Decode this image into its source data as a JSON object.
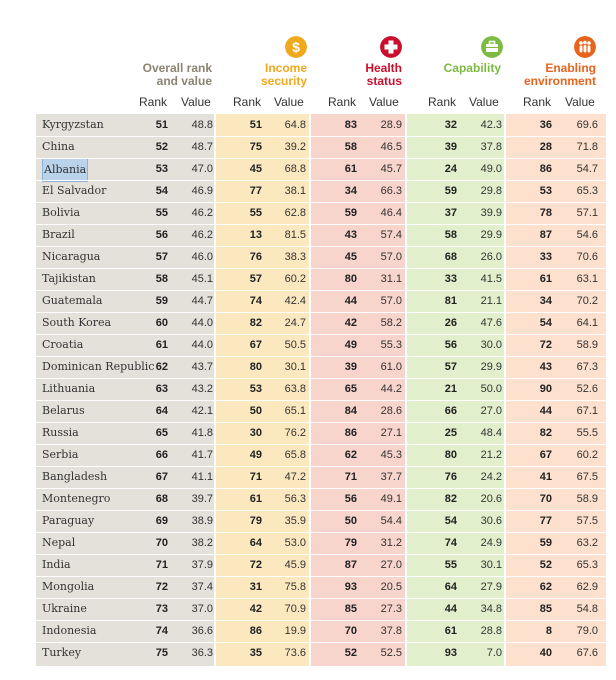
{
  "headers": {
    "overall": {
      "line1": "Overall rank",
      "line2": "and value"
    },
    "income": {
      "line1": "Income",
      "line2": "security"
    },
    "health": {
      "line1": "Health",
      "line2": "status"
    },
    "capability": {
      "line1": "Capability"
    },
    "enabling": {
      "line1": "Enabling",
      "line2": "environment"
    },
    "rank_label": "Rank",
    "value_label": "Value"
  },
  "colors": {
    "overall_band": "#e4e1da",
    "income_band": "#fce8bf",
    "health_band": "#f7d4cc",
    "capability_band": "#e2efcc",
    "enabling_band": "#fde0cd",
    "income_accent": "#f0a81c",
    "health_accent": "#c8102e",
    "capability_accent": "#7dbb42",
    "enabling_accent": "#e8641e",
    "overall_accent": "#8c8373"
  },
  "icons": {
    "income": "dollar-coin-icon",
    "health": "medical-cross-icon",
    "capability": "briefcase-icon",
    "enabling": "people-group-icon"
  },
  "rows": [
    {
      "country": "Kyrgyzstan",
      "overall_rank": "51",
      "overall_value": "48.8",
      "income_rank": "51",
      "income_value": "64.8",
      "health_rank": "83",
      "health_value": "28.9",
      "cap_rank": "32",
      "cap_value": "42.3",
      "env_rank": "36",
      "env_value": "69.6"
    },
    {
      "country": "China",
      "overall_rank": "52",
      "overall_value": "48.7",
      "income_rank": "75",
      "income_value": "39.2",
      "health_rank": "58",
      "health_value": "46.5",
      "cap_rank": "39",
      "cap_value": "37.8",
      "env_rank": "28",
      "env_value": "71.8"
    },
    {
      "country": "Albania",
      "overall_rank": "53",
      "overall_value": "47.0",
      "income_rank": "45",
      "income_value": "68.8",
      "health_rank": "61",
      "health_value": "45.7",
      "cap_rank": "24",
      "cap_value": "49.0",
      "env_rank": "86",
      "env_value": "54.7",
      "highlighted": true
    },
    {
      "country": "El Salvador",
      "overall_rank": "54",
      "overall_value": "46.9",
      "income_rank": "77",
      "income_value": "38.1",
      "health_rank": "34",
      "health_value": "66.3",
      "cap_rank": "59",
      "cap_value": "29.8",
      "env_rank": "53",
      "env_value": "65.3"
    },
    {
      "country": "Bolivia",
      "overall_rank": "55",
      "overall_value": "46.2",
      "income_rank": "55",
      "income_value": "62.8",
      "health_rank": "59",
      "health_value": "46.4",
      "cap_rank": "37",
      "cap_value": "39.9",
      "env_rank": "78",
      "env_value": "57.1"
    },
    {
      "country": "Brazil",
      "overall_rank": "56",
      "overall_value": "46.2",
      "income_rank": "13",
      "income_value": "81.5",
      "health_rank": "43",
      "health_value": "57.4",
      "cap_rank": "58",
      "cap_value": "29.9",
      "env_rank": "87",
      "env_value": "54.6"
    },
    {
      "country": "Nicaragua",
      "overall_rank": "57",
      "overall_value": "46.0",
      "income_rank": "76",
      "income_value": "38.3",
      "health_rank": "45",
      "health_value": "57.0",
      "cap_rank": "68",
      "cap_value": "26.0",
      "env_rank": "33",
      "env_value": "70.6"
    },
    {
      "country": "Tajikistan",
      "overall_rank": "58",
      "overall_value": "45.1",
      "income_rank": "57",
      "income_value": "60.2",
      "health_rank": "80",
      "health_value": "31.1",
      "cap_rank": "33",
      "cap_value": "41.5",
      "env_rank": "61",
      "env_value": "63.1"
    },
    {
      "country": "Guatemala",
      "overall_rank": "59",
      "overall_value": "44.7",
      "income_rank": "74",
      "income_value": "42.4",
      "health_rank": "44",
      "health_value": "57.0",
      "cap_rank": "81",
      "cap_value": "21.1",
      "env_rank": "34",
      "env_value": "70.2"
    },
    {
      "country": "South Korea",
      "overall_rank": "60",
      "overall_value": "44.0",
      "income_rank": "82",
      "income_value": "24.7",
      "health_rank": "42",
      "health_value": "58.2",
      "cap_rank": "26",
      "cap_value": "47.6",
      "env_rank": "54",
      "env_value": "64.1"
    },
    {
      "country": "Croatia",
      "overall_rank": "61",
      "overall_value": "44.0",
      "income_rank": "67",
      "income_value": "50.5",
      "health_rank": "49",
      "health_value": "55.3",
      "cap_rank": "56",
      "cap_value": "30.0",
      "env_rank": "72",
      "env_value": "58.9"
    },
    {
      "country": "Dominican Republic",
      "overall_rank": "62",
      "overall_value": "43.7",
      "income_rank": "80",
      "income_value": "30.1",
      "health_rank": "39",
      "health_value": "61.0",
      "cap_rank": "57",
      "cap_value": "29.9",
      "env_rank": "43",
      "env_value": "67.3"
    },
    {
      "country": "Lithuania",
      "overall_rank": "63",
      "overall_value": "43.2",
      "income_rank": "53",
      "income_value": "63.8",
      "health_rank": "65",
      "health_value": "44.2",
      "cap_rank": "21",
      "cap_value": "50.0",
      "env_rank": "90",
      "env_value": "52.6"
    },
    {
      "country": "Belarus",
      "overall_rank": "64",
      "overall_value": "42.1",
      "income_rank": "50",
      "income_value": "65.1",
      "health_rank": "84",
      "health_value": "28.6",
      "cap_rank": "66",
      "cap_value": "27.0",
      "env_rank": "44",
      "env_value": "67.1"
    },
    {
      "country": "Russia",
      "overall_rank": "65",
      "overall_value": "41.8",
      "income_rank": "30",
      "income_value": "76.2",
      "health_rank": "86",
      "health_value": "27.1",
      "cap_rank": "25",
      "cap_value": "48.4",
      "env_rank": "82",
      "env_value": "55.5"
    },
    {
      "country": "Serbia",
      "overall_rank": "66",
      "overall_value": "41.7",
      "income_rank": "49",
      "income_value": "65.8",
      "health_rank": "62",
      "health_value": "45.3",
      "cap_rank": "80",
      "cap_value": "21.2",
      "env_rank": "67",
      "env_value": "60.2"
    },
    {
      "country": "Bangladesh",
      "overall_rank": "67",
      "overall_value": "41.1",
      "income_rank": "71",
      "income_value": "47.2",
      "health_rank": "71",
      "health_value": "37.7",
      "cap_rank": "76",
      "cap_value": "24.2",
      "env_rank": "41",
      "env_value": "67.5"
    },
    {
      "country": "Montenegro",
      "overall_rank": "68",
      "overall_value": "39.7",
      "income_rank": "61",
      "income_value": "56.3",
      "health_rank": "56",
      "health_value": "49.1",
      "cap_rank": "82",
      "cap_value": "20.6",
      "env_rank": "70",
      "env_value": "58.9"
    },
    {
      "country": "Paraguay",
      "overall_rank": "69",
      "overall_value": "38.9",
      "income_rank": "79",
      "income_value": "35.9",
      "health_rank": "50",
      "health_value": "54.4",
      "cap_rank": "54",
      "cap_value": "30.6",
      "env_rank": "77",
      "env_value": "57.5"
    },
    {
      "country": "Nepal",
      "overall_rank": "70",
      "overall_value": "38.2",
      "income_rank": "64",
      "income_value": "53.0",
      "health_rank": "79",
      "health_value": "31.2",
      "cap_rank": "74",
      "cap_value": "24.9",
      "env_rank": "59",
      "env_value": "63.2"
    },
    {
      "country": "India",
      "overall_rank": "71",
      "overall_value": "37.9",
      "income_rank": "72",
      "income_value": "45.9",
      "health_rank": "87",
      "health_value": "27.0",
      "cap_rank": "55",
      "cap_value": "30.1",
      "env_rank": "52",
      "env_value": "65.3"
    },
    {
      "country": "Mongolia",
      "overall_rank": "72",
      "overall_value": "37.4",
      "income_rank": "31",
      "income_value": "75.8",
      "health_rank": "93",
      "health_value": "20.5",
      "cap_rank": "64",
      "cap_value": "27.9",
      "env_rank": "62",
      "env_value": "62.9"
    },
    {
      "country": "Ukraine",
      "overall_rank": "73",
      "overall_value": "37.0",
      "income_rank": "42",
      "income_value": "70.9",
      "health_rank": "85",
      "health_value": "27.3",
      "cap_rank": "44",
      "cap_value": "34.8",
      "env_rank": "85",
      "env_value": "54.8"
    },
    {
      "country": "Indonesia",
      "overall_rank": "74",
      "overall_value": "36.6",
      "income_rank": "86",
      "income_value": "19.9",
      "health_rank": "70",
      "health_value": "37.8",
      "cap_rank": "61",
      "cap_value": "28.8",
      "env_rank": "8",
      "env_value": "79.0"
    },
    {
      "country": "Turkey",
      "overall_rank": "75",
      "overall_value": "36.3",
      "income_rank": "35",
      "income_value": "73.6",
      "health_rank": "52",
      "health_value": "52.5",
      "cap_rank": "93",
      "cap_value": "7.0",
      "env_rank": "40",
      "env_value": "67.6"
    }
  ]
}
